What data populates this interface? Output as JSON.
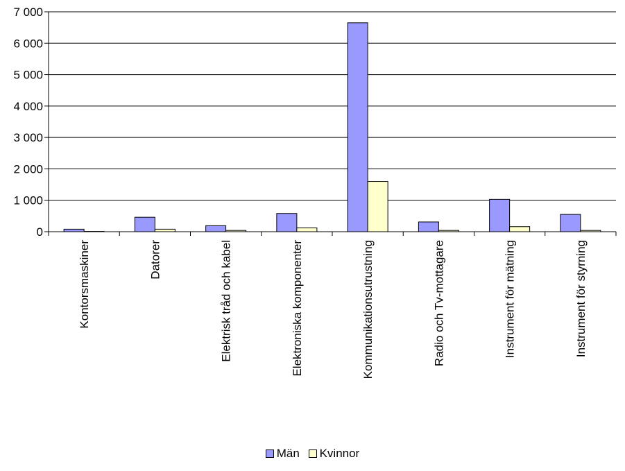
{
  "chart_data": {
    "type": "bar",
    "title": "",
    "xlabel": "",
    "ylabel": "",
    "ylim": [
      0,
      7000
    ],
    "yticks": [
      0,
      1000,
      2000,
      3000,
      4000,
      5000,
      6000,
      7000
    ],
    "ytick_labels": [
      "0",
      "1 000",
      "2 000",
      "3 000",
      "4 000",
      "5 000",
      "6 000",
      "7 000"
    ],
    "grid": true,
    "legend_position": "bottom-center",
    "categories": [
      "Kontorsmaskiner",
      "Datorer",
      "Elektrisk tråd och kabel",
      "Elektroniska komponenter",
      "Kommunikationsutrustning",
      "Radio och Tv-mottagare",
      "Instrument för mätning",
      "Instrument för styrning"
    ],
    "series": [
      {
        "name": "Män",
        "color": "#9999ff",
        "values": [
          80,
          460,
          190,
          580,
          6650,
          310,
          1030,
          550
        ]
      },
      {
        "name": "Kvinnor",
        "color": "#ffffcc",
        "values": [
          10,
          80,
          40,
          120,
          1600,
          40,
          160,
          40
        ]
      }
    ]
  }
}
